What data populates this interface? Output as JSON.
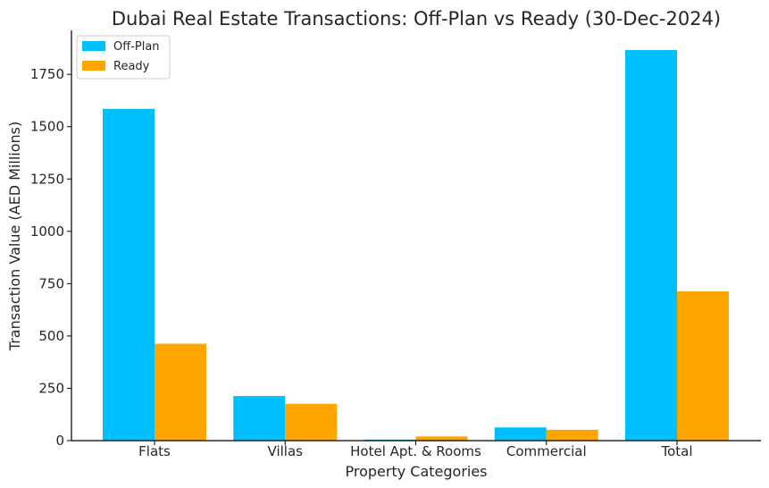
{
  "colors": {
    "offplan": "#00BFFF",
    "ready": "#FFA500",
    "axis": "#000000",
    "text": "#262626"
  },
  "chart_data": {
    "type": "bar",
    "title": "Dubai Real Estate Transactions: Off-Plan vs Ready (30-Dec-2024)",
    "xlabel": "Property Categories",
    "ylabel": "Transaction Value (AED Millions)",
    "categories": [
      "Flats",
      "Villas",
      "Hotel Apt. & Rooms",
      "Commercial",
      "Total"
    ],
    "series": [
      {
        "name": "Off-Plan",
        "color": "#00BFFF",
        "values": [
          1585,
          213,
          5,
          63,
          1866
        ]
      },
      {
        "name": "Ready",
        "color": "#FFA500",
        "values": [
          463,
          176,
          20,
          52,
          713
        ]
      }
    ],
    "yticks": [
      0,
      250,
      500,
      750,
      1000,
      1250,
      1500,
      1750
    ],
    "ylim": [
      0,
      1960
    ],
    "grid": false,
    "legend": "top-left"
  }
}
